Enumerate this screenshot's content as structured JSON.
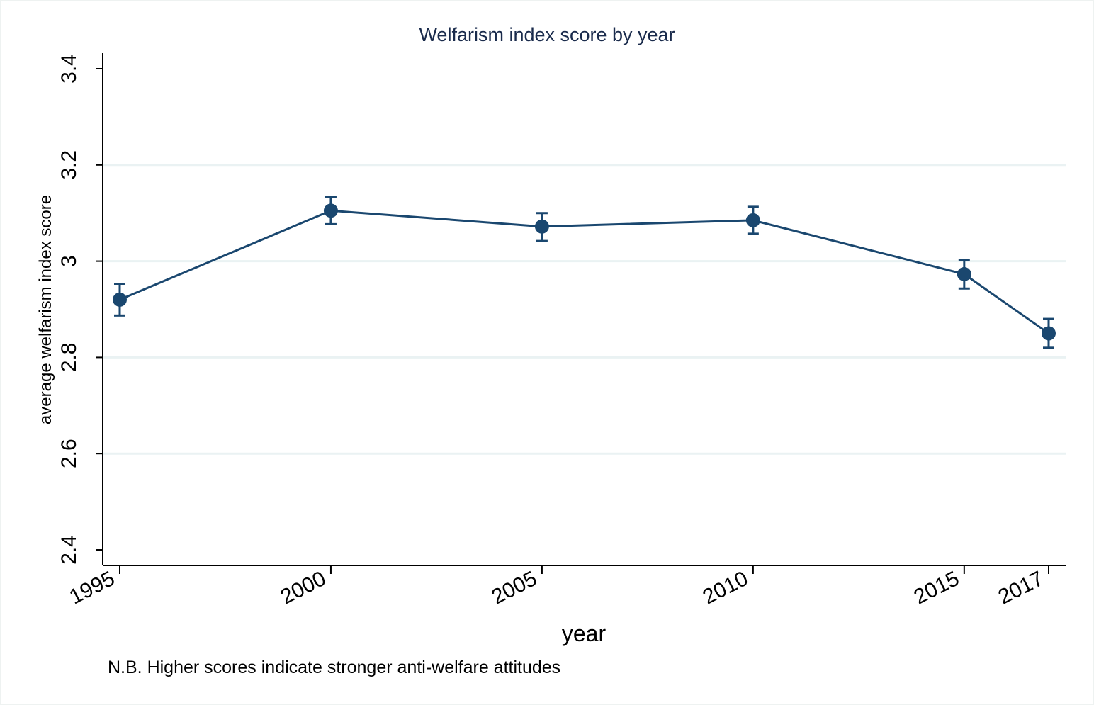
{
  "chart_data": {
    "type": "line",
    "title": "Welfarism index score by year",
    "xlabel": "year",
    "ylabel": "average welfarism index score",
    "note": "N.B. Higher scores indicate stronger anti-welfare attitudes",
    "x": [
      1995,
      2000,
      2005,
      2010,
      2015,
      2017
    ],
    "x_tick_labels": [
      "1995",
      "2000",
      "2005",
      "2010",
      "2015",
      "2017"
    ],
    "ylim": [
      2.4,
      3.4
    ],
    "y_ticks": [
      2.4,
      2.6,
      2.8,
      3.0,
      3.2,
      3.4
    ],
    "y_tick_labels": [
      "2.4",
      "2.6",
      "2.8",
      "3",
      "3.2",
      "3.4"
    ],
    "series": [
      {
        "values": [
          2.92,
          3.105,
          3.072,
          3.085,
          2.973,
          2.85
        ],
        "ci_low": [
          2.887,
          3.077,
          3.042,
          3.057,
          2.943,
          2.82
        ],
        "ci_high": [
          2.953,
          3.133,
          3.1,
          3.113,
          3.003,
          2.88
        ]
      }
    ],
    "grid": true,
    "colors": {
      "series": "#1a476f",
      "grid": "#eaf2f3",
      "title": "#1a2b4c",
      "frame": "#eef2f1"
    }
  }
}
